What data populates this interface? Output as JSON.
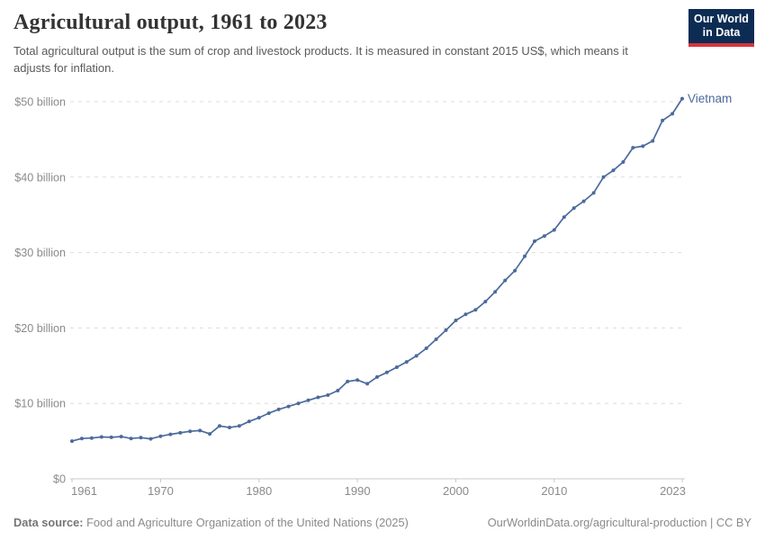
{
  "header": {
    "title": "Agricultural output, 1961 to 2023",
    "subtitle": "Total agricultural output is the sum of crop and livestock products. It is measured in constant 2015 US$, which means it adjusts for inflation.",
    "logo": {
      "line1": "Our World",
      "line2": "in Data"
    }
  },
  "chart_data": {
    "type": "line",
    "title": "Agricultural output, 1961 to 2023",
    "entity": "Vietnam",
    "unit": "constant 2015 US$",
    "grid": "horizontal-dashed",
    "legend_position": "end-of-line-label",
    "xlim": [
      1961,
      2023
    ],
    "ylim": [
      0,
      50
    ],
    "x_ticks": [
      1961,
      1970,
      1980,
      1990,
      2000,
      2010,
      2023
    ],
    "y_ticks": [
      {
        "value": 0,
        "label": "$0"
      },
      {
        "value": 10,
        "label": "$10 billion"
      },
      {
        "value": 20,
        "label": "$20 billion"
      },
      {
        "value": 30,
        "label": "$30 billion"
      },
      {
        "value": 40,
        "label": "$40 billion"
      },
      {
        "value": 50,
        "label": "$50 billion"
      }
    ],
    "x": [
      1961,
      1962,
      1963,
      1964,
      1965,
      1966,
      1967,
      1968,
      1969,
      1970,
      1971,
      1972,
      1973,
      1974,
      1975,
      1976,
      1977,
      1978,
      1979,
      1980,
      1981,
      1982,
      1983,
      1984,
      1985,
      1986,
      1987,
      1988,
      1989,
      1990,
      1991,
      1992,
      1993,
      1994,
      1995,
      1996,
      1997,
      1998,
      1999,
      2000,
      2001,
      2002,
      2003,
      2004,
      2005,
      2006,
      2007,
      2008,
      2009,
      2010,
      2011,
      2012,
      2013,
      2014,
      2015,
      2016,
      2017,
      2018,
      2019,
      2020,
      2021,
      2022,
      2023
    ],
    "series": [
      {
        "name": "Vietnam",
        "color": "#4c6a9c",
        "unit_scale": "billion US$",
        "values": [
          5.0,
          5.35,
          5.4,
          5.55,
          5.5,
          5.6,
          5.35,
          5.45,
          5.3,
          5.65,
          5.9,
          6.1,
          6.3,
          6.4,
          5.95,
          7.0,
          6.8,
          7.0,
          7.6,
          8.1,
          8.7,
          9.2,
          9.6,
          10.0,
          10.4,
          10.8,
          11.1,
          11.7,
          12.9,
          13.1,
          12.6,
          13.5,
          14.1,
          14.8,
          15.5,
          16.3,
          17.3,
          18.5,
          19.7,
          21.0,
          21.8,
          22.4,
          23.5,
          24.8,
          26.3,
          27.6,
          29.5,
          31.5,
          32.2,
          33.0,
          34.7,
          35.9,
          36.8,
          37.9,
          40.0,
          40.9,
          42.0,
          43.9,
          44.1,
          44.8,
          47.5,
          48.4,
          50.4
        ]
      }
    ]
  },
  "footer": {
    "source_label": "Data source:",
    "source_text": " Food and Agriculture Organization of the United Nations (2025)",
    "link_text": "OurWorldinData.org/agricultural-production | CC BY"
  },
  "colors": {
    "line": "#4c6a9c",
    "gridline": "#dcdcdc",
    "axis": "#c8c8c8",
    "tick_label": "#8a8a8a",
    "title": "#333333",
    "subtitle": "#595959",
    "logo_bg": "#0d2c54",
    "logo_red": "#d7343b",
    "footer_text": "#8a8a8a"
  }
}
